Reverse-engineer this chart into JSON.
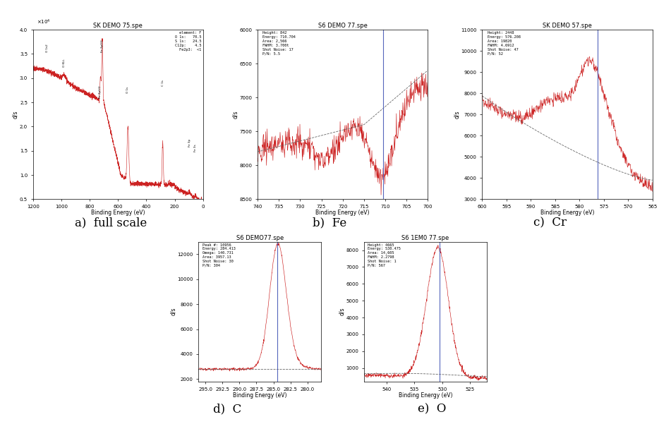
{
  "fig_width": 9.34,
  "fig_height": 6.01,
  "background_color": "#ffffff",
  "subplots": {
    "a": {
      "title": "SK DEMO 75.spe",
      "xlabel": "Binding Energy (eV)",
      "ylabel": "d/s",
      "xlim": [
        1200,
        0
      ],
      "ylim": [
        0.5,
        4.0
      ],
      "legend_text": "element: F\nO 1s:   70.5\nS 1s:   24.5\nC12p:   4.5\nFe2p3:  <1"
    },
    "b": {
      "title": "S6 DEMO 77.spe",
      "xlabel": "Binding Energy (eV)",
      "ylabel": "d/s",
      "xlim": [
        740,
        700
      ],
      "ylim": [
        8500,
        6000
      ],
      "vline_x": 710.5,
      "legend_text": "Height: 842\nEnergy: 710.704\nArea: 2,566\nFWHM: 3.700t\nShot Noise: 17\nP/N: 5.5"
    },
    "c": {
      "title": "SK DEMO 57.spe",
      "xlabel": "Binding Energy (eV)",
      "ylabel": "d/s",
      "xlim": [
        600,
        565
      ],
      "ylim": [
        3000,
        11000
      ],
      "vline_x": 576.2,
      "legend_text": "Height: 2448\nEnergy: 576.208\nArea: 19820\nFWHM: 4.6912\nShot Noise: 47\nP/N: 52"
    },
    "d": {
      "title": "S6 DEMO77.spe",
      "xlabel": "Binding Energy (eV)",
      "ylabel": "d/s",
      "xlim": [
        296,
        278
      ],
      "ylim": [
        1800,
        13000
      ],
      "vline_x": 284.4,
      "legend_text": "Peak #: 10956\nEnergy: 284.413\nOmega: 140.731\nArea: 3957.13\nShot Noise: 30\nP/N: 304"
    },
    "e": {
      "title": "S6 1EM0 77.spe",
      "xlabel": "Binding Energy (eV)",
      "ylabel": "d/s",
      "xlim": [
        544,
        522
      ],
      "ylim": [
        200,
        8500
      ],
      "vline_x": 530.5,
      "legend_text": "Height: 4665\nEnergy: 530.475\nArea: 14,605\nFWHM: 2.2798\nShot Noise: 1\nP/N: 567"
    }
  },
  "labels": {
    "a": "a)  full scale",
    "b": "b)  Fe",
    "c": "c)  Cr",
    "d": "d)  C",
    "e": "e)  O"
  },
  "label_fontsize": 12,
  "axis_fontsize": 5.5,
  "title_fontsize": 6,
  "tick_fontsize": 5
}
